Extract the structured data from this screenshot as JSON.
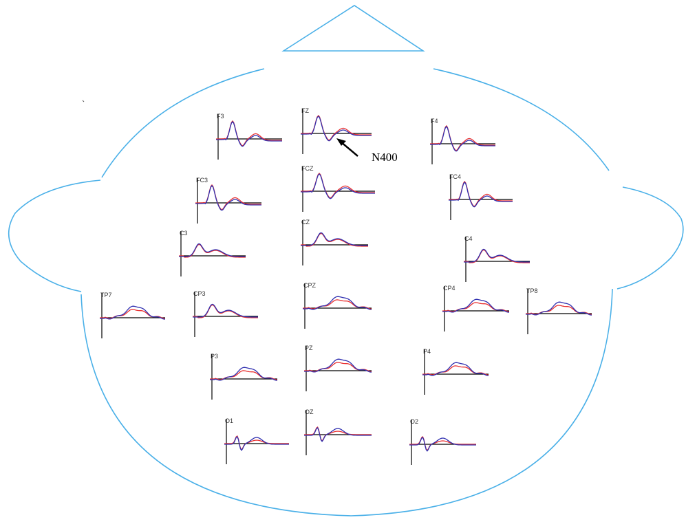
{
  "electrodes": [
    {
      "label": "F3"
    },
    {
      "label": "FZ"
    },
    {
      "label": "F4"
    },
    {
      "label": "FC3"
    },
    {
      "label": "FCZ"
    },
    {
      "label": "FC4"
    },
    {
      "label": "C3"
    },
    {
      "label": "CZ"
    },
    {
      "label": "C4"
    },
    {
      "label": "TP7"
    },
    {
      "label": "CP3"
    },
    {
      "label": "CPZ"
    },
    {
      "label": "CP4"
    },
    {
      "label": "TP8"
    },
    {
      "label": "P3"
    },
    {
      "label": "PZ"
    },
    {
      "label": "P4"
    },
    {
      "label": "O1"
    },
    {
      "label": "OZ"
    },
    {
      "label": "O2"
    }
  ],
  "annotation": "N400"
}
